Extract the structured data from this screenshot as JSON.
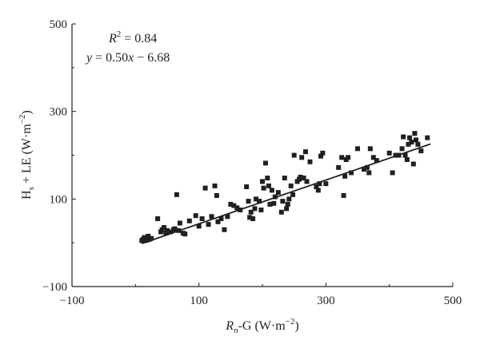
{
  "chart_data": {
    "type": "scatter",
    "xlabel": {
      "main": "R",
      "sub": "n",
      "rest": "-G (W·m",
      "sup": "−2",
      "close": ")"
    },
    "ylabel": {
      "main": "H",
      "sub": "s",
      "rest": " + LE (W·m",
      "sup": "−2",
      "close": ")"
    },
    "xlim": [
      -100,
      500
    ],
    "ylim": [
      -100,
      500
    ],
    "xticks": [
      -100,
      100,
      300,
      500
    ],
    "yticks": [
      -100,
      100,
      300,
      500
    ],
    "xtick_labels": [
      "−100",
      "100",
      "300",
      "500"
    ],
    "ytick_labels": [
      "−100",
      "100",
      "300",
      "500"
    ],
    "grid": false,
    "marker": "square",
    "marker_color": "#231f20",
    "annotations": {
      "r2": {
        "main": "R",
        "sup": "2",
        "rest": " = 0.84"
      },
      "equation": {
        "main": "y",
        "rest": " = 0.50",
        "var": "x",
        "tail": " − 6.68"
      }
    },
    "fit_line": {
      "slope": 0.5,
      "intercept": -6.68,
      "x_range": [
        10,
        465
      ]
    },
    "series": [
      {
        "values": [
          [
            10,
            5
          ],
          [
            12,
            8
          ],
          [
            14,
            12
          ],
          [
            15,
            5
          ],
          [
            16,
            10
          ],
          [
            18,
            6
          ],
          [
            20,
            15
          ],
          [
            22,
            8
          ],
          [
            25,
            10
          ],
          [
            35,
            55
          ],
          [
            40,
            25
          ],
          [
            42,
            30
          ],
          [
            45,
            35
          ],
          [
            48,
            22
          ],
          [
            50,
            28
          ],
          [
            55,
            25
          ],
          [
            60,
            30
          ],
          [
            62,
            32
          ],
          [
            65,
            110
          ],
          [
            68,
            28
          ],
          [
            70,
            45
          ],
          [
            75,
            22
          ],
          [
            78,
            20
          ],
          [
            85,
            50
          ],
          [
            95,
            62
          ],
          [
            100,
            38
          ],
          [
            105,
            55
          ],
          [
            110,
            125
          ],
          [
            115,
            42
          ],
          [
            120,
            60
          ],
          [
            125,
            130
          ],
          [
            128,
            108
          ],
          [
            130,
            48
          ],
          [
            135,
            55
          ],
          [
            140,
            30
          ],
          [
            145,
            60
          ],
          [
            150,
            88
          ],
          [
            155,
            85
          ],
          [
            160,
            80
          ],
          [
            165,
            75
          ],
          [
            175,
            128
          ],
          [
            178,
            95
          ],
          [
            180,
            58
          ],
          [
            182,
            70
          ],
          [
            185,
            55
          ],
          [
            188,
            78
          ],
          [
            190,
            100
          ],
          [
            195,
            95
          ],
          [
            198,
            75
          ],
          [
            200,
            140
          ],
          [
            202,
            125
          ],
          [
            205,
            182
          ],
          [
            208,
            148
          ],
          [
            210,
            130
          ],
          [
            212,
            88
          ],
          [
            215,
            120
          ],
          [
            218,
            90
          ],
          [
            220,
            105
          ],
          [
            225,
            115
          ],
          [
            230,
            70
          ],
          [
            232,
            95
          ],
          [
            235,
            148
          ],
          [
            238,
            78
          ],
          [
            240,
            88
          ],
          [
            242,
            100
          ],
          [
            245,
            130
          ],
          [
            248,
            110
          ],
          [
            250,
            200
          ],
          [
            255,
            140
          ],
          [
            258,
            145
          ],
          [
            260,
            150
          ],
          [
            262,
            195
          ],
          [
            265,
            148
          ],
          [
            268,
            208
          ],
          [
            270,
            140
          ],
          [
            275,
            185
          ],
          [
            285,
            128
          ],
          [
            288,
            120
          ],
          [
            290,
            135
          ],
          [
            292,
            198
          ],
          [
            295,
            205
          ],
          [
            300,
            135
          ],
          [
            320,
            172
          ],
          [
            325,
            195
          ],
          [
            328,
            108
          ],
          [
            330,
            152
          ],
          [
            332,
            190
          ],
          [
            335,
            195
          ],
          [
            340,
            160
          ],
          [
            350,
            215
          ],
          [
            360,
            168
          ],
          [
            365,
            172
          ],
          [
            368,
            160
          ],
          [
            370,
            215
          ],
          [
            375,
            195
          ],
          [
            380,
            188
          ],
          [
            400,
            205
          ],
          [
            405,
            160
          ],
          [
            410,
            200
          ],
          [
            415,
            200
          ],
          [
            420,
            215
          ],
          [
            422,
            242
          ],
          [
            425,
            200
          ],
          [
            428,
            190
          ],
          [
            430,
            225
          ],
          [
            432,
            240
          ],
          [
            435,
            230
          ],
          [
            438,
            180
          ],
          [
            440,
            250
          ],
          [
            442,
            235
          ],
          [
            445,
            225
          ],
          [
            450,
            210
          ],
          [
            460,
            240
          ]
        ]
      }
    ]
  }
}
